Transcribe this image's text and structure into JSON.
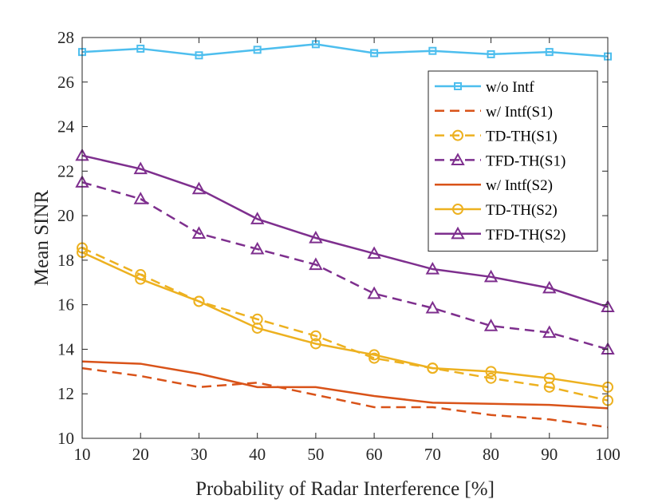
{
  "chart_data": {
    "type": "line",
    "xlabel": "Probability of Radar Interference [%]",
    "ylabel": "Mean SINR",
    "xlim": [
      10,
      100
    ],
    "ylim": [
      10,
      28
    ],
    "x": [
      10,
      20,
      30,
      40,
      50,
      60,
      70,
      80,
      90,
      100
    ],
    "x_ticks": [
      "10",
      "20",
      "30",
      "40",
      "50",
      "60",
      "70",
      "80",
      "90",
      "100"
    ],
    "y_ticks": [
      "10",
      "12",
      "14",
      "16",
      "18",
      "20",
      "22",
      "24",
      "26",
      "28"
    ],
    "grid": false,
    "legend_position": "top-right",
    "series": [
      {
        "name": "w/o Intf",
        "color": "#4DBEEE",
        "line_style": "solid",
        "marker": "square",
        "values": [
          27.35,
          27.5,
          27.2,
          27.45,
          27.7,
          27.3,
          27.4,
          27.25,
          27.35,
          27.15
        ]
      },
      {
        "name": "w/ Intf(S1)",
        "color": "#D95319",
        "line_style": "dashed",
        "marker": "none",
        "values": [
          13.15,
          12.8,
          12.3,
          12.5,
          11.95,
          11.4,
          11.4,
          11.05,
          10.85,
          10.5
        ]
      },
      {
        "name": "TD-TH(S1)",
        "color": "#EDB120",
        "line_style": "dashed",
        "marker": "circle",
        "values": [
          18.55,
          17.35,
          16.15,
          15.35,
          14.6,
          13.6,
          13.15,
          12.7,
          12.3,
          11.7
        ]
      },
      {
        "name": "TFD-TH(S1)",
        "color": "#7E2F8E",
        "line_style": "dashed",
        "marker": "triangle",
        "values": [
          21.5,
          20.75,
          19.2,
          18.5,
          17.8,
          16.5,
          15.85,
          15.05,
          14.75,
          14.0
        ]
      },
      {
        "name": "w/ Intf(S2)",
        "color": "#D95319",
        "line_style": "solid",
        "marker": "none",
        "values": [
          13.45,
          13.35,
          12.9,
          12.3,
          12.3,
          11.9,
          11.6,
          11.55,
          11.5,
          11.35
        ]
      },
      {
        "name": "TD-TH(S2)",
        "color": "#EDB120",
        "line_style": "solid",
        "marker": "circle",
        "values": [
          18.35,
          17.15,
          16.15,
          14.95,
          14.25,
          13.75,
          13.15,
          13.0,
          12.7,
          12.3
        ]
      },
      {
        "name": "TFD-TH(S2)",
        "color": "#7E2F8E",
        "line_style": "solid",
        "marker": "triangle",
        "values": [
          22.7,
          22.1,
          21.2,
          19.85,
          19.0,
          18.3,
          17.6,
          17.25,
          16.75,
          15.9
        ]
      }
    ]
  }
}
